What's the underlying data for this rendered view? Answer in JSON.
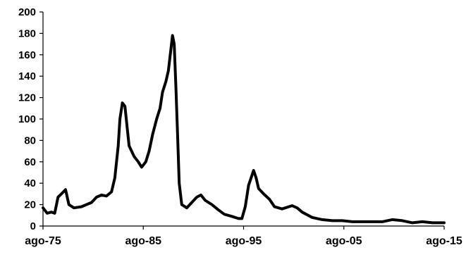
{
  "chart_data": {
    "type": "line",
    "x_tick_labels": [
      "ago-75",
      "ago-85",
      "ago-95",
      "ago-05",
      "ago-15"
    ],
    "x_ticks_date": [
      "1975-08",
      "1985-08",
      "1995-08",
      "2005-08",
      "2015-08"
    ],
    "y_tick_labels": [
      "0",
      "20",
      "40",
      "60",
      "80",
      "100",
      "120",
      "140",
      "160",
      "180",
      "200"
    ],
    "ylim": [
      0,
      200
    ],
    "xlim": [
      "1975-08",
      "2015-08"
    ],
    "grid": false,
    "legend": "none",
    "series": [
      {
        "color": "#000000",
        "points": [
          [
            "1975-08",
            17
          ],
          [
            "1976-01",
            12
          ],
          [
            "1976-06",
            13
          ],
          [
            "1976-10",
            12
          ],
          [
            "1977-02",
            27
          ],
          [
            "1977-06",
            30
          ],
          [
            "1977-11",
            34
          ],
          [
            "1978-03",
            20
          ],
          [
            "1978-09",
            17
          ],
          [
            "1979-06",
            18
          ],
          [
            "1980-06",
            22
          ],
          [
            "1980-12",
            27
          ],
          [
            "1981-06",
            29
          ],
          [
            "1981-12",
            28
          ],
          [
            "1982-06",
            32
          ],
          [
            "1982-10",
            45
          ],
          [
            "1983-02",
            75
          ],
          [
            "1983-04",
            100
          ],
          [
            "1983-07",
            115
          ],
          [
            "1983-10",
            112
          ],
          [
            "1984-01",
            90
          ],
          [
            "1984-03",
            75
          ],
          [
            "1984-09",
            65
          ],
          [
            "1985-02",
            60
          ],
          [
            "1985-06",
            55
          ],
          [
            "1985-11",
            60
          ],
          [
            "1986-03",
            70
          ],
          [
            "1986-07",
            85
          ],
          [
            "1986-12",
            100
          ],
          [
            "1987-04",
            110
          ],
          [
            "1987-07",
            125
          ],
          [
            "1987-11",
            135
          ],
          [
            "1988-02",
            145
          ],
          [
            "1988-05",
            165
          ],
          [
            "1988-07",
            178
          ],
          [
            "1988-09",
            170
          ],
          [
            "1988-11",
            130
          ],
          [
            "1989-01",
            85
          ],
          [
            "1989-03",
            40
          ],
          [
            "1989-06",
            20
          ],
          [
            "1989-12",
            17
          ],
          [
            "1990-06",
            22
          ],
          [
            "1990-12",
            27
          ],
          [
            "1991-05",
            29
          ],
          [
            "1991-10",
            24
          ],
          [
            "1992-06",
            20
          ],
          [
            "1993-02",
            15
          ],
          [
            "1993-09",
            11
          ],
          [
            "1994-06",
            9
          ],
          [
            "1995-02",
            7
          ],
          [
            "1995-06",
            7
          ],
          [
            "1995-10",
            18
          ],
          [
            "1996-02",
            38
          ],
          [
            "1996-05",
            45
          ],
          [
            "1996-08",
            52
          ],
          [
            "1996-11",
            45
          ],
          [
            "1997-02",
            35
          ],
          [
            "1997-08",
            30
          ],
          [
            "1998-03",
            25
          ],
          [
            "1998-09",
            18
          ],
          [
            "1999-06",
            16
          ],
          [
            "2000-06",
            19
          ],
          [
            "2000-12",
            17
          ],
          [
            "2001-06",
            13
          ],
          [
            "2002-06",
            8
          ],
          [
            "2003-06",
            6
          ],
          [
            "2004-06",
            5
          ],
          [
            "2005-06",
            5
          ],
          [
            "2006-06",
            4
          ],
          [
            "2007-06",
            4
          ],
          [
            "2008-06",
            4
          ],
          [
            "2009-06",
            4
          ],
          [
            "2010-06",
            6
          ],
          [
            "2011-06",
            5
          ],
          [
            "2012-06",
            3
          ],
          [
            "2013-06",
            4
          ],
          [
            "2014-06",
            3
          ],
          [
            "2015-06",
            3
          ],
          [
            "2015-08",
            3
          ]
        ]
      }
    ]
  }
}
